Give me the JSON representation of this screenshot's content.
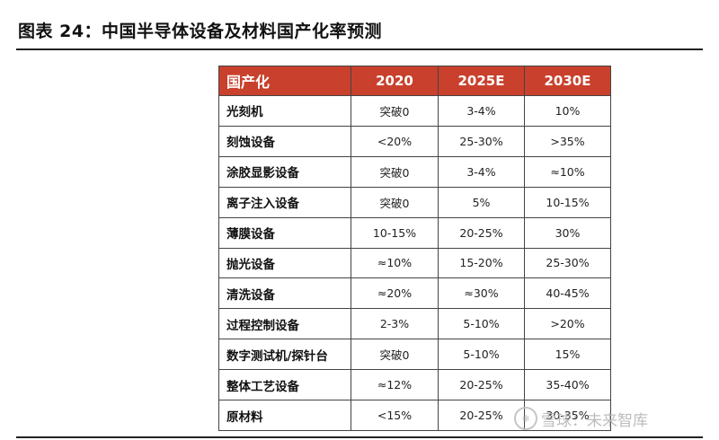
{
  "title": "图表 24：中国半导体设备及材料国产化率预测",
  "table": {
    "headers": [
      "国产化",
      "2020",
      "2025E",
      "2030E"
    ],
    "rows": [
      {
        "name": "光刻机",
        "v2020": "突破0",
        "v2025": "3-4%",
        "v2030": "10%"
      },
      {
        "name": "刻蚀设备",
        "v2020": "<20%",
        "v2025": "25-30%",
        "v2030": ">35%"
      },
      {
        "name": "涂胶显影设备",
        "v2020": "突破0",
        "v2025": "3-4%",
        "v2030": "≈10%"
      },
      {
        "name": "离子注入设备",
        "v2020": "突破0",
        "v2025": "5%",
        "v2030": "10-15%"
      },
      {
        "name": "薄膜设备",
        "v2020": "10-15%",
        "v2025": "20-25%",
        "v2030": "30%"
      },
      {
        "name": "抛光设备",
        "v2020": "≈10%",
        "v2025": "15-20%",
        "v2030": "25-30%"
      },
      {
        "name": "清洗设备",
        "v2020": "≈20%",
        "v2025": "≈30%",
        "v2030": "40-45%"
      },
      {
        "name": "过程控制设备",
        "v2020": "2-3%",
        "v2025": "5-10%",
        "v2030": ">20%"
      },
      {
        "name": "数字测试机/探针台",
        "v2020": "突破0",
        "v2025": "5-10%",
        "v2030": "15%"
      },
      {
        "name": "整体工艺设备",
        "v2020": "≈12%",
        "v2025": "20-25%",
        "v2030": "35-40%"
      },
      {
        "name": "原材料",
        "v2020": "<15%",
        "v2025": "20-25%",
        "v2030": "30-35%"
      }
    ]
  },
  "watermark": {
    "text": "雪球：未来智库",
    "icon": "snowball-logo-icon"
  },
  "colors": {
    "header_bg": "#c9402c",
    "header_text": "#ffffff"
  }
}
